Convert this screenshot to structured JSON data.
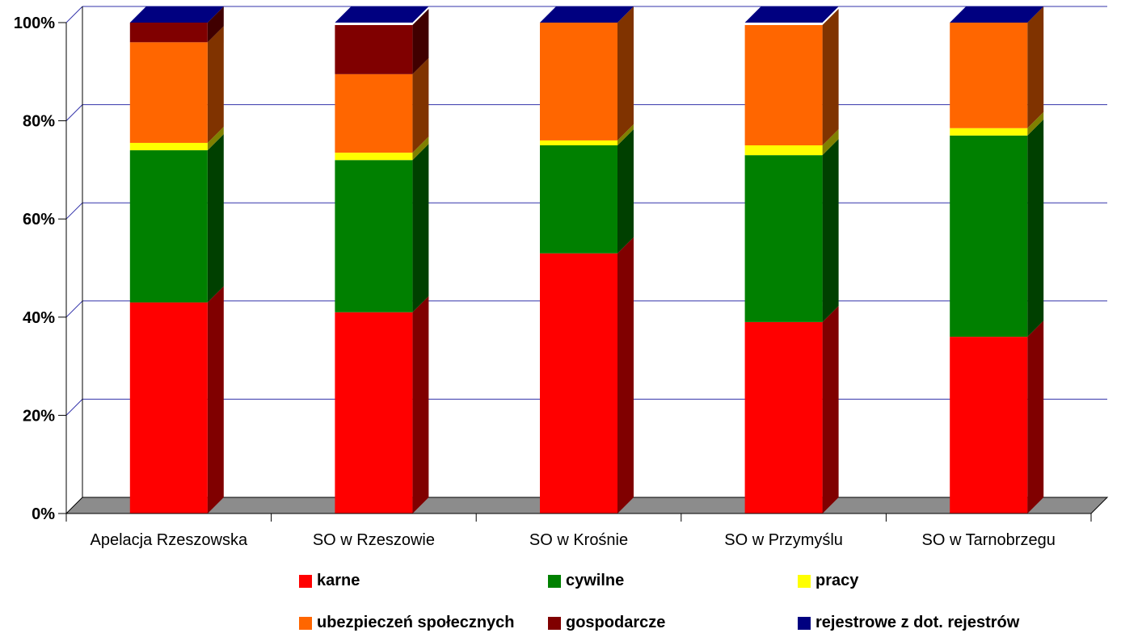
{
  "chart_data": {
    "type": "bar",
    "stacked": true,
    "percent": true,
    "three_d": true,
    "categories": [
      "Apelacja Rzeszowska",
      "SO w Rzeszowie",
      "SO w Krośnie",
      "SO w Przymyślu",
      "SO w Tarnobrzegu"
    ],
    "series": [
      {
        "name": "karne",
        "color": "#ff0000",
        "values": [
          43,
          41,
          53,
          39,
          36
        ]
      },
      {
        "name": "cywilne",
        "color": "#008000",
        "values": [
          31,
          31,
          22,
          34,
          41
        ]
      },
      {
        "name": "pracy",
        "color": "#ffff00",
        "values": [
          1.5,
          1.5,
          1,
          2,
          1.5
        ]
      },
      {
        "name": "ubezpieczeń społecznych",
        "color": "#ff6600",
        "values": [
          20.5,
          16,
          24,
          24.5,
          21.5
        ]
      },
      {
        "name": "gospodarcze",
        "color": "#800000",
        "values": [
          4,
          10,
          0,
          0,
          0
        ]
      },
      {
        "name": "rejestrowe z dot. rejestrów",
        "color": "#000080",
        "values": [
          0,
          0,
          0,
          0,
          0
        ]
      }
    ],
    "ylim": [
      0,
      100
    ],
    "yticks": [
      "0%",
      "20%",
      "40%",
      "60%",
      "80%",
      "100%"
    ],
    "grid": true,
    "legend": "bottom"
  }
}
